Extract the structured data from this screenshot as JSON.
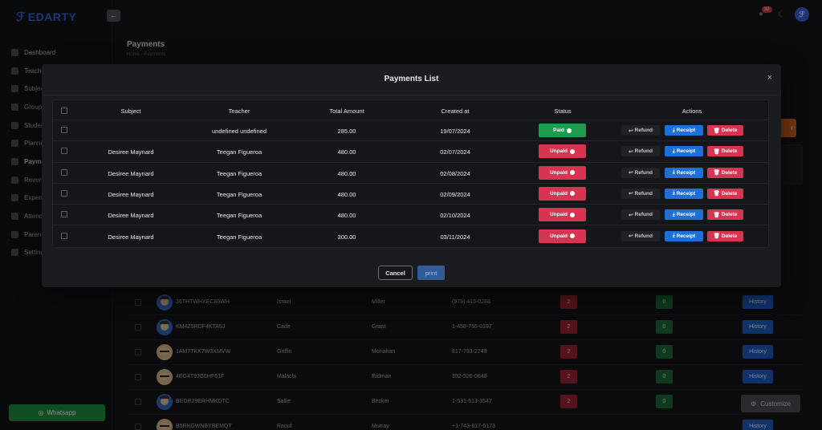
{
  "brand": {
    "name": "EDARTY"
  },
  "header": {
    "notification_count": "32"
  },
  "sidebar": {
    "items": [
      {
        "label": "Dashboard"
      },
      {
        "label": "Teachers"
      },
      {
        "label": "Subjects"
      },
      {
        "label": "Groups"
      },
      {
        "label": "Students"
      },
      {
        "label": "Planning"
      },
      {
        "label": "Payments"
      },
      {
        "label": "Revenue"
      },
      {
        "label": "Expenses"
      },
      {
        "label": "Attendance"
      },
      {
        "label": "Parents"
      },
      {
        "label": "Settings"
      }
    ],
    "whatsapp_label": "Whatsapp"
  },
  "page": {
    "title": "Payments",
    "breadcrumb_home": "Home",
    "breadcrumb_sep": "-",
    "breadcrumb_current": "Payments",
    "orange_button_label": "r"
  },
  "background_table": {
    "rows": [
      {
        "code": "36THTWHXEC86WH",
        "first": "Israel",
        "last": "Miller",
        "phone": "(979) 415-0268",
        "red": "2",
        "green": "0",
        "action": "History"
      },
      {
        "code": "KM4Z5RDF4KTA5J",
        "first": "Cade",
        "last": "Grant",
        "phone": "1-458-755-0197",
        "red": "2",
        "green": "0",
        "action": "History"
      },
      {
        "code": "1AM7TKK7W3XMVW",
        "first": "Griffin",
        "last": "Monahan",
        "phone": "817-793-2749",
        "red": "2",
        "green": "0",
        "action": "History"
      },
      {
        "code": "4EG4T9JG5HF61F",
        "first": "Malachi",
        "last": "Erdman",
        "phone": "352-520-0648",
        "red": "2",
        "green": "0",
        "action": "History"
      },
      {
        "code": "BEDR29ERHMKDTC",
        "first": "Sallie",
        "last": "Becker",
        "phone": "1-531-613-3547",
        "red": "2",
        "green": "0",
        "action": "History"
      },
      {
        "code": "B5RKGWNBYBEMQT",
        "first": "Raoul",
        "last": "Murray",
        "phone": "+1-743-817-6173",
        "red": "2",
        "green": "0",
        "action": "History"
      }
    ]
  },
  "customize_label": "Customize",
  "modal": {
    "title": "Payments List",
    "close_symbol": "×",
    "columns": [
      "Subject",
      "Teacher",
      "Total Amount",
      "Created at",
      "Status",
      "Actions"
    ],
    "rows": [
      {
        "subject": "",
        "teacher": "undefined undefined",
        "amount": "285.00",
        "created": "19/07/2024",
        "status": "Paid"
      },
      {
        "subject": "Desiree Maynard",
        "teacher": "Teegan Figueroa",
        "amount": "480.00",
        "created": "02/07/2024",
        "status": "Unpaid"
      },
      {
        "subject": "Desiree Maynard",
        "teacher": "Teegan Figueroa",
        "amount": "480.00",
        "created": "02/08/2024",
        "status": "Unpaid"
      },
      {
        "subject": "Desiree Maynard",
        "teacher": "Teegan Figueroa",
        "amount": "480.00",
        "created": "02/09/2024",
        "status": "Unpaid"
      },
      {
        "subject": "Desiree Maynard",
        "teacher": "Teegan Figueroa",
        "amount": "480.00",
        "created": "02/10/2024",
        "status": "Unpaid"
      },
      {
        "subject": "Desiree Maynard",
        "teacher": "Teegan Figueroa",
        "amount": "300.00",
        "created": "03/11/2024",
        "status": "Unpaid"
      }
    ],
    "actions": {
      "refund": "Refund",
      "receipt": "Receipt",
      "delete": "Delete"
    },
    "cancel_label": "Cancel",
    "print_label": "print"
  },
  "colors": {
    "paid": "#1c9b51",
    "unpaid": "#d63451",
    "receipt": "#1f6fd8",
    "brand": "#3b62d8"
  }
}
